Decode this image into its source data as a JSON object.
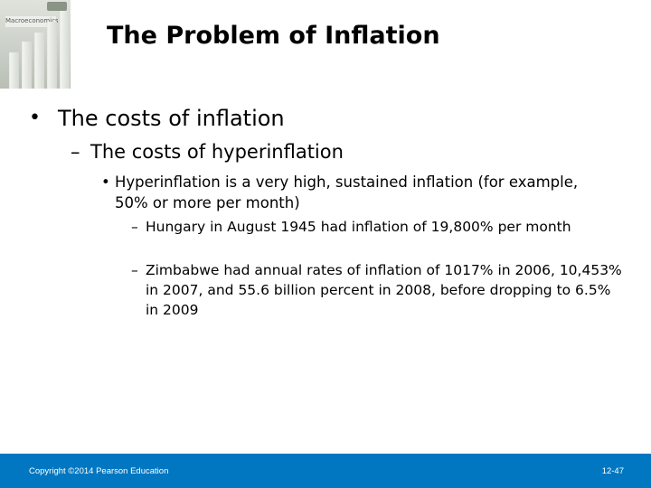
{
  "header": {
    "book_cover_title": "Macroeconomics",
    "title": "The Problem of Inflation"
  },
  "content": {
    "level1": "The costs of inflation",
    "level2": "The costs of hyperinflation",
    "level3": "Hyperinflation is a very high, sustained inflation (for example, 50% or more per month)",
    "level4": [
      "Hungary in August 1945 had inflation of 19,800% per month",
      "Zimbabwe had annual rates of inflation of 1017% in 2006, 10,453% in 2007, and 55.6 billion percent in 2008, before dropping to 6.5% in 2009"
    ]
  },
  "footer": {
    "copyright": "Copyright ©2014 Pearson Education",
    "page_number": "12-47"
  },
  "colors": {
    "footer_background": "#0077c0",
    "footer_text": "#ffffff"
  }
}
